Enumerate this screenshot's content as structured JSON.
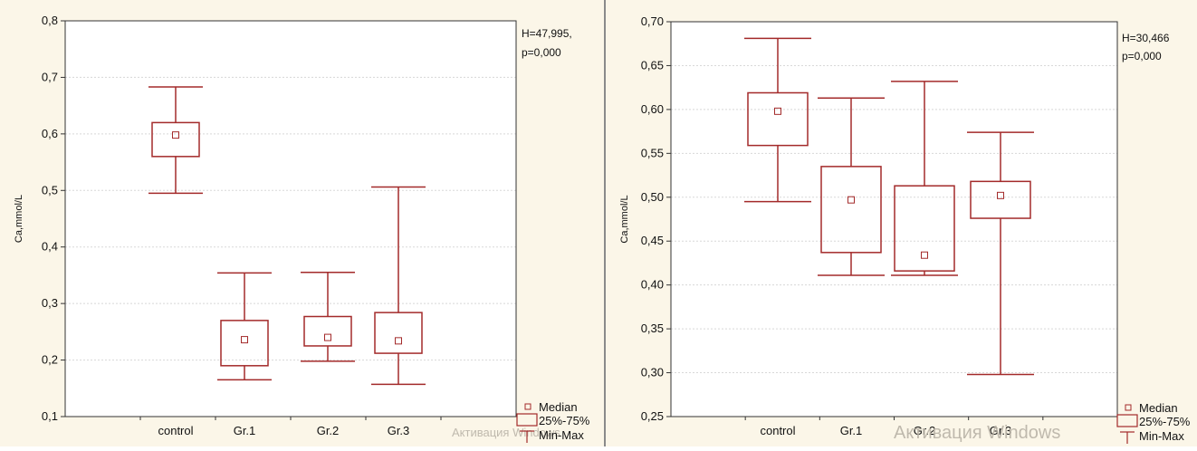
{
  "chart_data": [
    {
      "type": "box",
      "ylabel": "Ca,mmol/L",
      "ylim": [
        0.1,
        0.8
      ],
      "yticks": [
        "0,1",
        "0,2",
        "0,3",
        "0,4",
        "0,5",
        "0,6",
        "0,7",
        "0,8"
      ],
      "ytick_values": [
        0.1,
        0.2,
        0.3,
        0.4,
        0.5,
        0.6,
        0.7,
        0.8
      ],
      "categories": [
        "control",
        "Gr.1",
        "Gr.2",
        "Gr.3"
      ],
      "series": [
        {
          "category": "control",
          "min": 0.495,
          "q1": 0.56,
          "median": 0.598,
          "q3": 0.62,
          "max": 0.683
        },
        {
          "category": "Gr.1",
          "min": 0.165,
          "q1": 0.19,
          "median": 0.236,
          "q3": 0.27,
          "max": 0.354
        },
        {
          "category": "Gr.2",
          "min": 0.198,
          "q1": 0.225,
          "median": 0.24,
          "q3": 0.277,
          "max": 0.355
        },
        {
          "category": "Gr.3",
          "min": 0.157,
          "q1": 0.212,
          "median": 0.234,
          "q3": 0.284,
          "max": 0.506
        }
      ],
      "stat_line1": "H=47,995,",
      "stat_line2": "p=0,000",
      "legend": [
        "Median",
        "25%-75%",
        "Min-Max"
      ],
      "legend_position": "bottom-right",
      "grid": true,
      "watermark": "Активация Windows"
    },
    {
      "type": "box",
      "ylabel": "Ca,mmol/L",
      "ylim": [
        0.25,
        0.7
      ],
      "yticks": [
        "0,25",
        "0,30",
        "0,35",
        "0,40",
        "0,45",
        "0,50",
        "0,55",
        "0,60",
        "0,65",
        "0,70"
      ],
      "ytick_values": [
        0.25,
        0.3,
        0.35,
        0.4,
        0.45,
        0.5,
        0.55,
        0.6,
        0.65,
        0.7
      ],
      "categories": [
        "control",
        "Gr.1",
        "Gr.2",
        "Gr.3"
      ],
      "series": [
        {
          "category": "control",
          "min": 0.495,
          "q1": 0.559,
          "median": 0.598,
          "q3": 0.619,
          "max": 0.681
        },
        {
          "category": "Gr.1",
          "min": 0.411,
          "q1": 0.437,
          "median": 0.497,
          "q3": 0.535,
          "max": 0.613
        },
        {
          "category": "Gr.2",
          "min": 0.411,
          "q1": 0.416,
          "median": 0.434,
          "q3": 0.513,
          "max": 0.632
        },
        {
          "category": "Gr.3",
          "min": 0.298,
          "q1": 0.476,
          "median": 0.502,
          "q3": 0.518,
          "max": 0.574
        }
      ],
      "stat_line1": "H=30,466",
      "stat_line2": "p=0,000",
      "legend": [
        "Median",
        "25%-75%",
        "Min-Max"
      ],
      "legend_position": "bottom-right",
      "grid": true,
      "watermark": "Активация Windows"
    }
  ],
  "colors": {
    "box": "#a32a2a",
    "axis": "#333333",
    "grid": "#d8d8d8",
    "plot_bg": "#ffffff",
    "frame_bg": "#fbf6e8"
  }
}
